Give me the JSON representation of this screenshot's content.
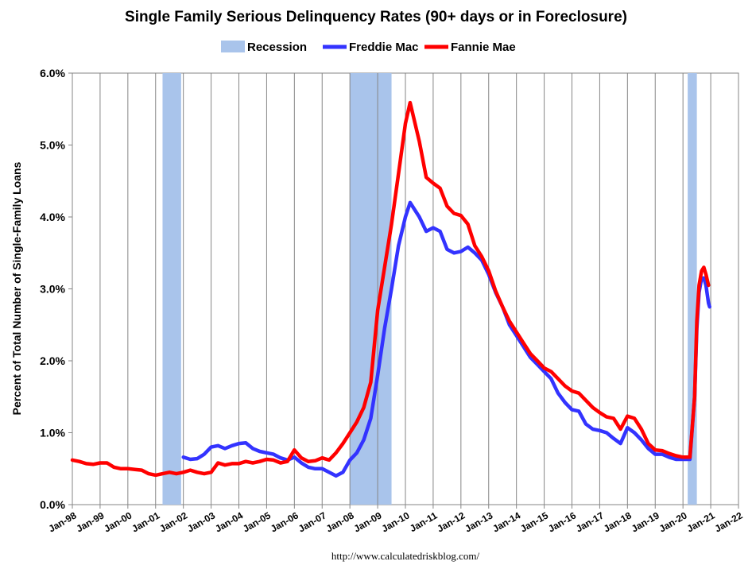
{
  "chart_data": {
    "type": "line",
    "title": "Single Family Serious Delinquency Rates (90+ days or in Foreclosure)",
    "ylabel": "Percent of Total Number of Single-Family Loans",
    "xlabel": "",
    "source": "http://www.calculatedriskblog.com/",
    "ylim": [
      0,
      6
    ],
    "xlim": [
      1998,
      2022
    ],
    "y_ticks": [
      "0.0%",
      "1.0%",
      "2.0%",
      "3.0%",
      "4.0%",
      "5.0%",
      "6.0%"
    ],
    "x_ticks": [
      "Jan-98",
      "Jan-99",
      "Jan-00",
      "Jan-01",
      "Jan-02",
      "Jan-03",
      "Jan-04",
      "Jan-05",
      "Jan-06",
      "Jan-07",
      "Jan-08",
      "Jan-09",
      "Jan-10",
      "Jan-11",
      "Jan-12",
      "Jan-13",
      "Jan-14",
      "Jan-15",
      "Jan-16",
      "Jan-17",
      "Jan-18",
      "Jan-19",
      "Jan-20",
      "Jan-21",
      "Jan-22"
    ],
    "grid": "vertical",
    "legend_position": "top",
    "legend": [
      {
        "name": "Recession",
        "color": "#a9c4eb"
      },
      {
        "name": "Freddie Mac",
        "color": "#3333ff"
      },
      {
        "name": "Fannie Mae",
        "color": "#ff0000"
      }
    ],
    "recessions": [
      {
        "start": 2001.25,
        "end": 2001.92
      },
      {
        "start": 2008.0,
        "end": 2009.5
      },
      {
        "start": 2020.17,
        "end": 2020.5
      }
    ],
    "series": [
      {
        "name": "Fannie Mae",
        "color": "#ff0000",
        "points": [
          [
            1998.0,
            0.62
          ],
          [
            1998.25,
            0.6
          ],
          [
            1998.5,
            0.57
          ],
          [
            1998.75,
            0.56
          ],
          [
            1999.0,
            0.58
          ],
          [
            1999.25,
            0.58
          ],
          [
            1999.5,
            0.52
          ],
          [
            1999.75,
            0.5
          ],
          [
            2000.0,
            0.5
          ],
          [
            2000.25,
            0.49
          ],
          [
            2000.5,
            0.48
          ],
          [
            2000.75,
            0.43
          ],
          [
            2001.0,
            0.41
          ],
          [
            2001.25,
            0.43
          ],
          [
            2001.5,
            0.45
          ],
          [
            2001.75,
            0.43
          ],
          [
            2002.0,
            0.45
          ],
          [
            2002.25,
            0.48
          ],
          [
            2002.5,
            0.45
          ],
          [
            2002.75,
            0.43
          ],
          [
            2003.0,
            0.45
          ],
          [
            2003.25,
            0.58
          ],
          [
            2003.5,
            0.55
          ],
          [
            2003.75,
            0.57
          ],
          [
            2004.0,
            0.57
          ],
          [
            2004.25,
            0.6
          ],
          [
            2004.5,
            0.58
          ],
          [
            2004.75,
            0.6
          ],
          [
            2005.0,
            0.63
          ],
          [
            2005.25,
            0.62
          ],
          [
            2005.5,
            0.58
          ],
          [
            2005.75,
            0.6
          ],
          [
            2006.0,
            0.76
          ],
          [
            2006.25,
            0.65
          ],
          [
            2006.5,
            0.6
          ],
          [
            2006.75,
            0.61
          ],
          [
            2007.0,
            0.65
          ],
          [
            2007.25,
            0.62
          ],
          [
            2007.5,
            0.72
          ],
          [
            2007.75,
            0.85
          ],
          [
            2008.0,
            1.0
          ],
          [
            2008.25,
            1.15
          ],
          [
            2008.5,
            1.35
          ],
          [
            2008.75,
            1.7
          ],
          [
            2009.0,
            2.7
          ],
          [
            2009.25,
            3.3
          ],
          [
            2009.5,
            3.9
          ],
          [
            2009.75,
            4.6
          ],
          [
            2010.0,
            5.3
          ],
          [
            2010.17,
            5.59
          ],
          [
            2010.5,
            5.05
          ],
          [
            2010.75,
            4.55
          ],
          [
            2011.0,
            4.47
          ],
          [
            2011.25,
            4.4
          ],
          [
            2011.5,
            4.15
          ],
          [
            2011.75,
            4.05
          ],
          [
            2012.0,
            4.02
          ],
          [
            2012.25,
            3.9
          ],
          [
            2012.5,
            3.6
          ],
          [
            2012.75,
            3.45
          ],
          [
            2013.0,
            3.25
          ],
          [
            2013.25,
            2.97
          ],
          [
            2013.5,
            2.75
          ],
          [
            2013.75,
            2.55
          ],
          [
            2014.0,
            2.4
          ],
          [
            2014.25,
            2.25
          ],
          [
            2014.5,
            2.1
          ],
          [
            2014.75,
            2.0
          ],
          [
            2015.0,
            1.9
          ],
          [
            2015.25,
            1.85
          ],
          [
            2015.5,
            1.75
          ],
          [
            2015.75,
            1.65
          ],
          [
            2016.0,
            1.58
          ],
          [
            2016.25,
            1.55
          ],
          [
            2016.5,
            1.45
          ],
          [
            2016.75,
            1.35
          ],
          [
            2017.0,
            1.28
          ],
          [
            2017.25,
            1.22
          ],
          [
            2017.5,
            1.2
          ],
          [
            2017.75,
            1.05
          ],
          [
            2018.0,
            1.23
          ],
          [
            2018.25,
            1.2
          ],
          [
            2018.5,
            1.05
          ],
          [
            2018.75,
            0.85
          ],
          [
            2019.0,
            0.76
          ],
          [
            2019.25,
            0.75
          ],
          [
            2019.5,
            0.71
          ],
          [
            2019.75,
            0.68
          ],
          [
            2020.0,
            0.66
          ],
          [
            2020.25,
            0.66
          ],
          [
            2020.42,
            1.5
          ],
          [
            2020.5,
            2.55
          ],
          [
            2020.58,
            3.05
          ],
          [
            2020.67,
            3.25
          ],
          [
            2020.75,
            3.3
          ],
          [
            2020.83,
            3.2
          ],
          [
            2020.92,
            3.05
          ]
        ]
      },
      {
        "name": "Freddie Mac",
        "color": "#3333ff",
        "points": [
          [
            2002.0,
            0.66
          ],
          [
            2002.25,
            0.63
          ],
          [
            2002.5,
            0.64
          ],
          [
            2002.75,
            0.7
          ],
          [
            2003.0,
            0.8
          ],
          [
            2003.25,
            0.82
          ],
          [
            2003.5,
            0.78
          ],
          [
            2003.75,
            0.82
          ],
          [
            2004.0,
            0.85
          ],
          [
            2004.25,
            0.86
          ],
          [
            2004.5,
            0.78
          ],
          [
            2004.75,
            0.74
          ],
          [
            2005.0,
            0.72
          ],
          [
            2005.25,
            0.7
          ],
          [
            2005.5,
            0.65
          ],
          [
            2005.75,
            0.62
          ],
          [
            2006.0,
            0.66
          ],
          [
            2006.25,
            0.58
          ],
          [
            2006.5,
            0.52
          ],
          [
            2006.75,
            0.5
          ],
          [
            2007.0,
            0.5
          ],
          [
            2007.25,
            0.45
          ],
          [
            2007.5,
            0.4
          ],
          [
            2007.75,
            0.45
          ],
          [
            2008.0,
            0.62
          ],
          [
            2008.25,
            0.72
          ],
          [
            2008.5,
            0.9
          ],
          [
            2008.75,
            1.2
          ],
          [
            2009.0,
            1.8
          ],
          [
            2009.25,
            2.45
          ],
          [
            2009.5,
            3.0
          ],
          [
            2009.75,
            3.6
          ],
          [
            2010.0,
            4.0
          ],
          [
            2010.17,
            4.2
          ],
          [
            2010.5,
            4.0
          ],
          [
            2010.75,
            3.8
          ],
          [
            2011.0,
            3.85
          ],
          [
            2011.25,
            3.8
          ],
          [
            2011.5,
            3.55
          ],
          [
            2011.75,
            3.5
          ],
          [
            2012.0,
            3.52
          ],
          [
            2012.25,
            3.58
          ],
          [
            2012.5,
            3.5
          ],
          [
            2012.75,
            3.4
          ],
          [
            2013.0,
            3.2
          ],
          [
            2013.25,
            2.95
          ],
          [
            2013.5,
            2.75
          ],
          [
            2013.75,
            2.5
          ],
          [
            2014.0,
            2.35
          ],
          [
            2014.25,
            2.2
          ],
          [
            2014.5,
            2.05
          ],
          [
            2014.75,
            1.95
          ],
          [
            2015.0,
            1.85
          ],
          [
            2015.25,
            1.75
          ],
          [
            2015.5,
            1.55
          ],
          [
            2015.75,
            1.42
          ],
          [
            2016.0,
            1.32
          ],
          [
            2016.25,
            1.3
          ],
          [
            2016.5,
            1.12
          ],
          [
            2016.75,
            1.05
          ],
          [
            2017.0,
            1.03
          ],
          [
            2017.25,
            1.0
          ],
          [
            2017.5,
            0.92
          ],
          [
            2017.75,
            0.85
          ],
          [
            2018.0,
            1.07
          ],
          [
            2018.25,
            1.0
          ],
          [
            2018.5,
            0.9
          ],
          [
            2018.75,
            0.78
          ],
          [
            2019.0,
            0.7
          ],
          [
            2019.25,
            0.7
          ],
          [
            2019.5,
            0.66
          ],
          [
            2019.75,
            0.63
          ],
          [
            2020.0,
            0.63
          ],
          [
            2020.25,
            0.63
          ],
          [
            2020.42,
            1.5
          ],
          [
            2020.5,
            2.45
          ],
          [
            2020.58,
            2.95
          ],
          [
            2020.67,
            3.15
          ],
          [
            2020.75,
            3.15
          ],
          [
            2020.83,
            3.05
          ],
          [
            2020.92,
            2.8
          ],
          [
            2020.96,
            2.75
          ]
        ]
      }
    ]
  }
}
